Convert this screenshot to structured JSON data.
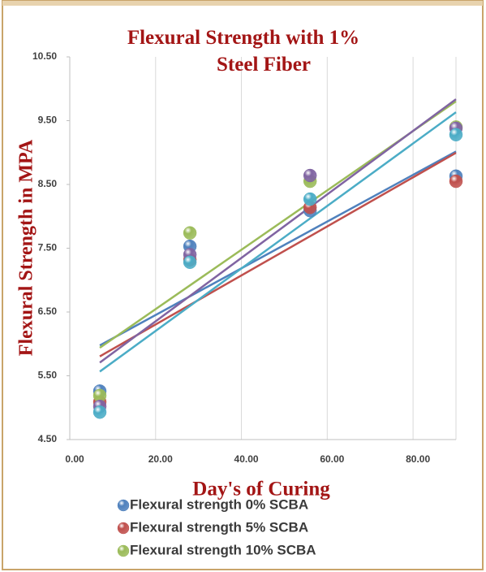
{
  "chart_data": {
    "type": "scatter",
    "title": "Flexural Strength with 1% Steel Fiber",
    "x_label": "Day's of Curing",
    "y_label": "Flexural Strength in MPA",
    "x": [
      7,
      28,
      56,
      90
    ],
    "series": [
      {
        "name": "Flexural strength 0% SCBA",
        "color": "#4f81bd",
        "values": [
          5.26,
          7.53,
          8.09,
          8.63
        ]
      },
      {
        "name": "Flexural strength 5% SCBA",
        "color": "#c0504d",
        "values": [
          5.09,
          7.32,
          8.14,
          8.55
        ]
      },
      {
        "name": "Flexural strength 10% SCBA",
        "color": "#9bbb59",
        "values": [
          5.19,
          7.74,
          8.55,
          9.4
        ]
      },
      {
        "color": "#8064a2",
        "values": [
          5.02,
          7.4,
          8.64,
          9.38
        ]
      },
      {
        "color": "#4bacc6",
        "values": [
          4.93,
          7.28,
          8.27,
          9.28
        ]
      }
    ],
    "trendline": "linear",
    "xlim": [
      0,
      90
    ],
    "ylim": [
      4.5,
      10.5
    ],
    "xticks": [
      {
        "value": 0,
        "label": "0.00"
      },
      {
        "value": 20,
        "label": "20.00"
      },
      {
        "value": 40,
        "label": "40.00"
      },
      {
        "value": 60,
        "label": "60.00"
      },
      {
        "value": 80,
        "label": "80.00"
      }
    ],
    "yticks": [
      {
        "value": 4.5,
        "label": "4.50"
      },
      {
        "value": 5.5,
        "label": "5.50"
      },
      {
        "value": 6.5,
        "label": "6.50"
      },
      {
        "value": 7.5,
        "label": "7.50"
      },
      {
        "value": 8.5,
        "label": "8.50"
      },
      {
        "value": 9.5,
        "label": "9.50"
      },
      {
        "value": 10.5,
        "label": "10.50"
      }
    ],
    "grid": "x"
  }
}
